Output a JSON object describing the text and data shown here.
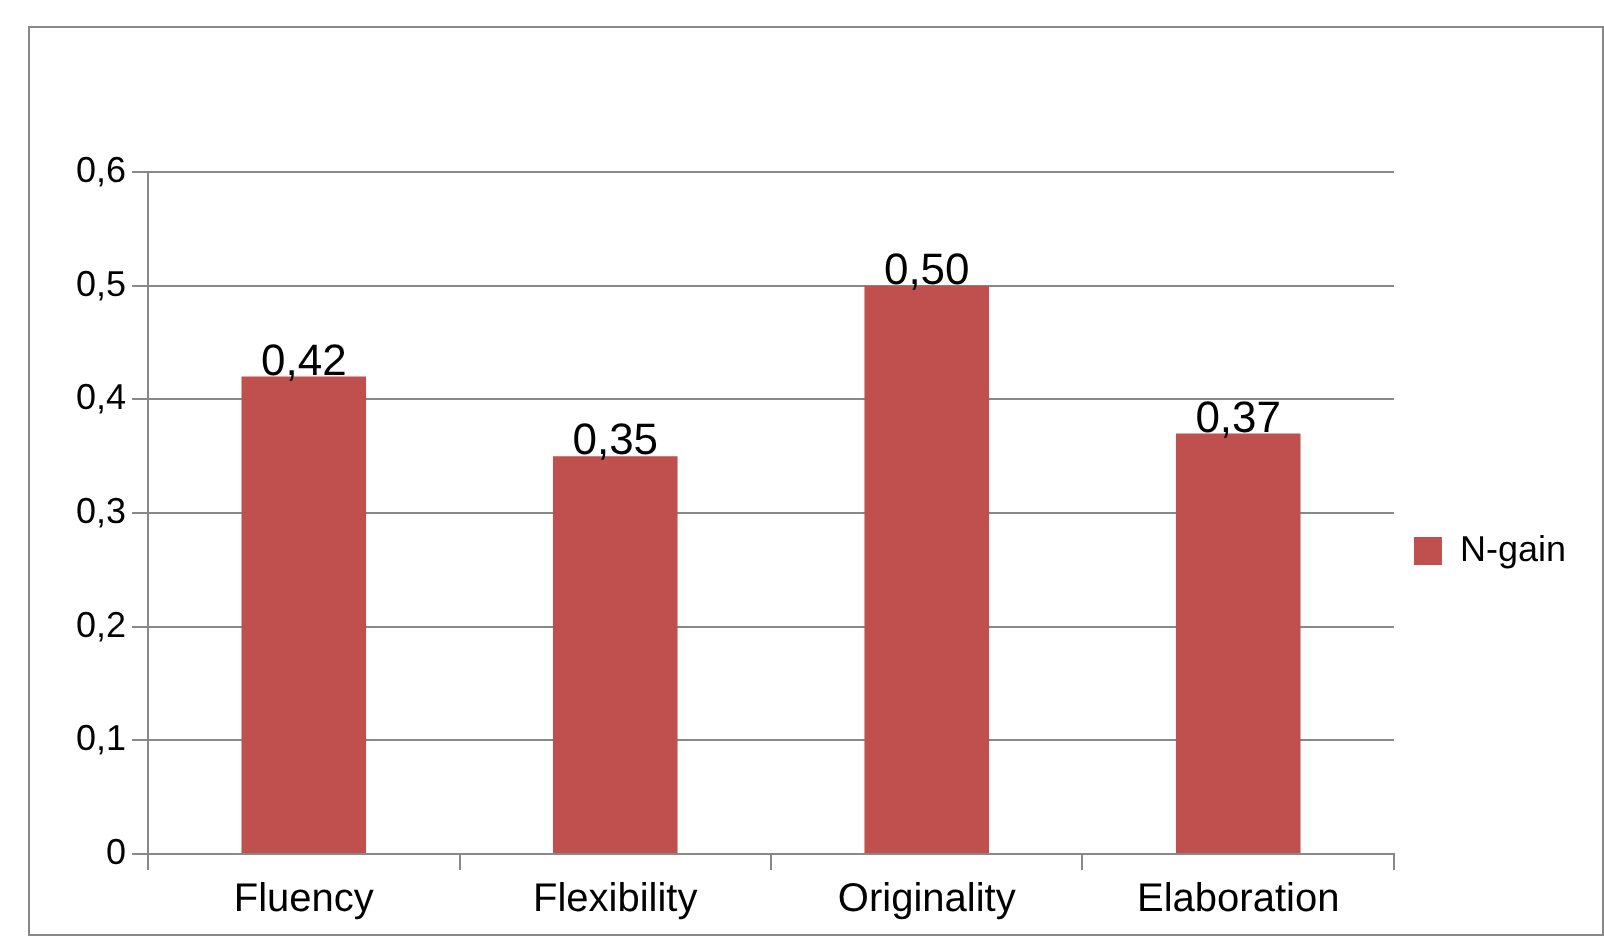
{
  "chart_data": {
    "type": "bar",
    "categories": [
      "Fluency",
      "Flexibility",
      "Originality",
      "Elaboration"
    ],
    "series": [
      {
        "name": "N-gain",
        "color": "#c0504d",
        "values": [
          0.42,
          0.35,
          0.5,
          0.37
        ],
        "value_labels": [
          "0,42",
          "0,35",
          "0,50",
          "0,37"
        ]
      }
    ],
    "ylim": [
      0,
      0.6
    ],
    "yticks": [
      0,
      {
        "value": 0.1,
        "label": "0,1"
      },
      {
        "value": 0.2,
        "label": "0,2"
      },
      {
        "value": 0.3,
        "label": "0,3"
      },
      {
        "value": 0.4,
        "label": "0,4"
      },
      {
        "value": 0.5,
        "label": "0,5"
      },
      {
        "value": 0.6,
        "label": "0,6"
      }
    ],
    "grid": "y",
    "legend": "right"
  }
}
